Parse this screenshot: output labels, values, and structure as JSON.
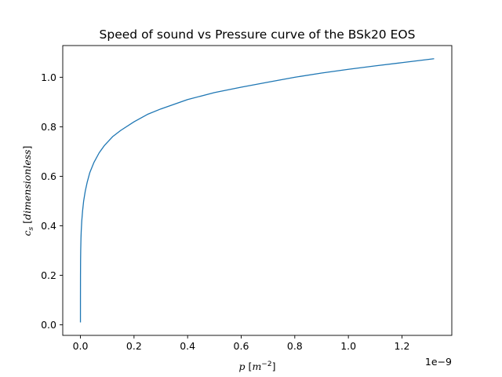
{
  "chart_data": {
    "type": "line",
    "title": "Speed of sound vs Pressure curve of the BSk20 EOS",
    "xlabel": {
      "symbol": "p",
      "unit_open": "[",
      "unit_base": "m",
      "unit_exp": "−2",
      "unit_close": "]"
    },
    "ylabel": {
      "symbol": "c",
      "subscript": "s",
      "unit_open": "[",
      "unit_text": "dimensionless",
      "unit_close": "]"
    },
    "x_offset_label": "1e−9",
    "x_scale": 1e-09,
    "xlim": [
      -0.066,
      1.386
    ],
    "ylim": [
      -0.0425,
      1.128
    ],
    "x_ticks": [
      {
        "value": 0.0,
        "label": "0.0"
      },
      {
        "value": 0.2,
        "label": "0.2"
      },
      {
        "value": 0.4,
        "label": "0.4"
      },
      {
        "value": 0.6,
        "label": "0.6"
      },
      {
        "value": 0.8,
        "label": "0.8"
      },
      {
        "value": 1.0,
        "label": "1.0"
      },
      {
        "value": 1.2,
        "label": "1.2"
      }
    ],
    "y_ticks": [
      {
        "value": 0.0,
        "label": "0.0"
      },
      {
        "value": 0.2,
        "label": "0.2"
      },
      {
        "value": 0.4,
        "label": "0.4"
      },
      {
        "value": 0.6,
        "label": "0.6"
      },
      {
        "value": 0.8,
        "label": "0.8"
      },
      {
        "value": 1.0,
        "label": "1.0"
      }
    ],
    "grid": false,
    "series": [
      {
        "color": "#1f77b4",
        "x": [
          0.0,
          5e-05,
          0.0002,
          0.0005,
          0.001,
          0.002,
          0.003,
          0.005,
          0.008,
          0.012,
          0.018,
          0.025,
          0.035,
          0.05,
          0.07,
          0.09,
          0.12,
          0.15,
          0.2,
          0.25,
          0.3,
          0.4,
          0.5,
          0.6,
          0.7,
          0.8,
          0.9,
          1.0,
          1.1,
          1.2,
          1.32
        ],
        "y": [
          0.01,
          0.1,
          0.2,
          0.26,
          0.3,
          0.35,
          0.38,
          0.42,
          0.46,
          0.5,
          0.54,
          0.575,
          0.615,
          0.655,
          0.695,
          0.725,
          0.76,
          0.785,
          0.82,
          0.85,
          0.872,
          0.91,
          0.938,
          0.96,
          0.98,
          1.0,
          1.017,
          1.032,
          1.046,
          1.059,
          1.075
        ]
      }
    ]
  }
}
